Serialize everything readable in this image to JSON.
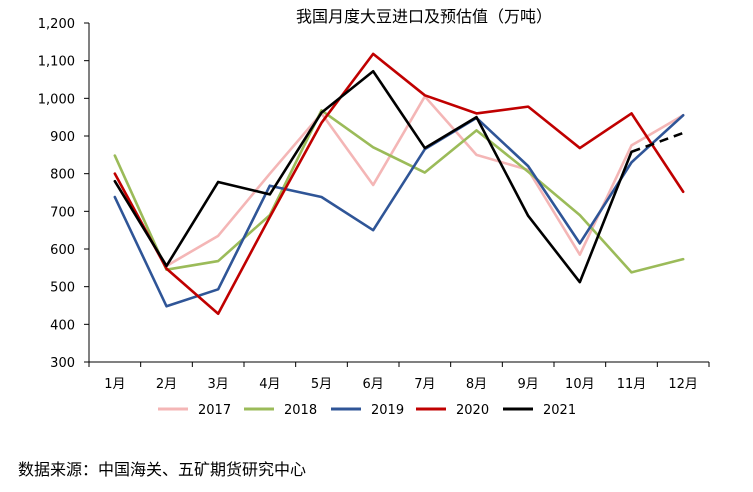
{
  "chart_data": {
    "type": "line",
    "title": "我国月度大豆进口及预估值（万吨）",
    "categories": [
      "1月",
      "2月",
      "3月",
      "4月",
      "5月",
      "6月",
      "7月",
      "8月",
      "9月",
      "10月",
      "11月",
      "12月"
    ],
    "y_tick_labels": [
      "300",
      "400",
      "500",
      "600",
      "700",
      "800",
      "900",
      "1,000",
      "1,100",
      "1,200"
    ],
    "y_ticks": [
      300,
      400,
      500,
      600,
      700,
      800,
      900,
      1000,
      1100,
      1200
    ],
    "ylim": [
      300,
      1200
    ],
    "grid": false,
    "legend_position": "bottom",
    "series": [
      {
        "name": "2017",
        "color": "#f4b6b6",
        "dashed_from_index": null,
        "values": [
          780,
          555,
          635,
          800,
          960,
          770,
          1005,
          850,
          810,
          585,
          875,
          955
        ]
      },
      {
        "name": "2018",
        "color": "#9bbb59",
        "dashed_from_index": null,
        "values": [
          848,
          545,
          568,
          690,
          968,
          870,
          803,
          915,
          805,
          690,
          538,
          573
        ]
      },
      {
        "name": "2019",
        "color": "#2f5597",
        "dashed_from_index": null,
        "values": [
          738,
          448,
          493,
          768,
          738,
          650,
          865,
          948,
          820,
          615,
          830,
          955
        ]
      },
      {
        "name": "2020",
        "color": "#c00000",
        "dashed_from_index": null,
        "values": [
          800,
          548,
          428,
          685,
          935,
          1118,
          1008,
          960,
          978,
          868,
          960,
          752
        ]
      },
      {
        "name": "2021",
        "color": "#000000",
        "dashed_from_index": 10,
        "values": [
          780,
          555,
          778,
          745,
          962,
          1072,
          868,
          950,
          688,
          512,
          858,
          908
        ]
      }
    ]
  },
  "footer": {
    "source": "数据来源：中国海关、五矿期货研究中心"
  }
}
